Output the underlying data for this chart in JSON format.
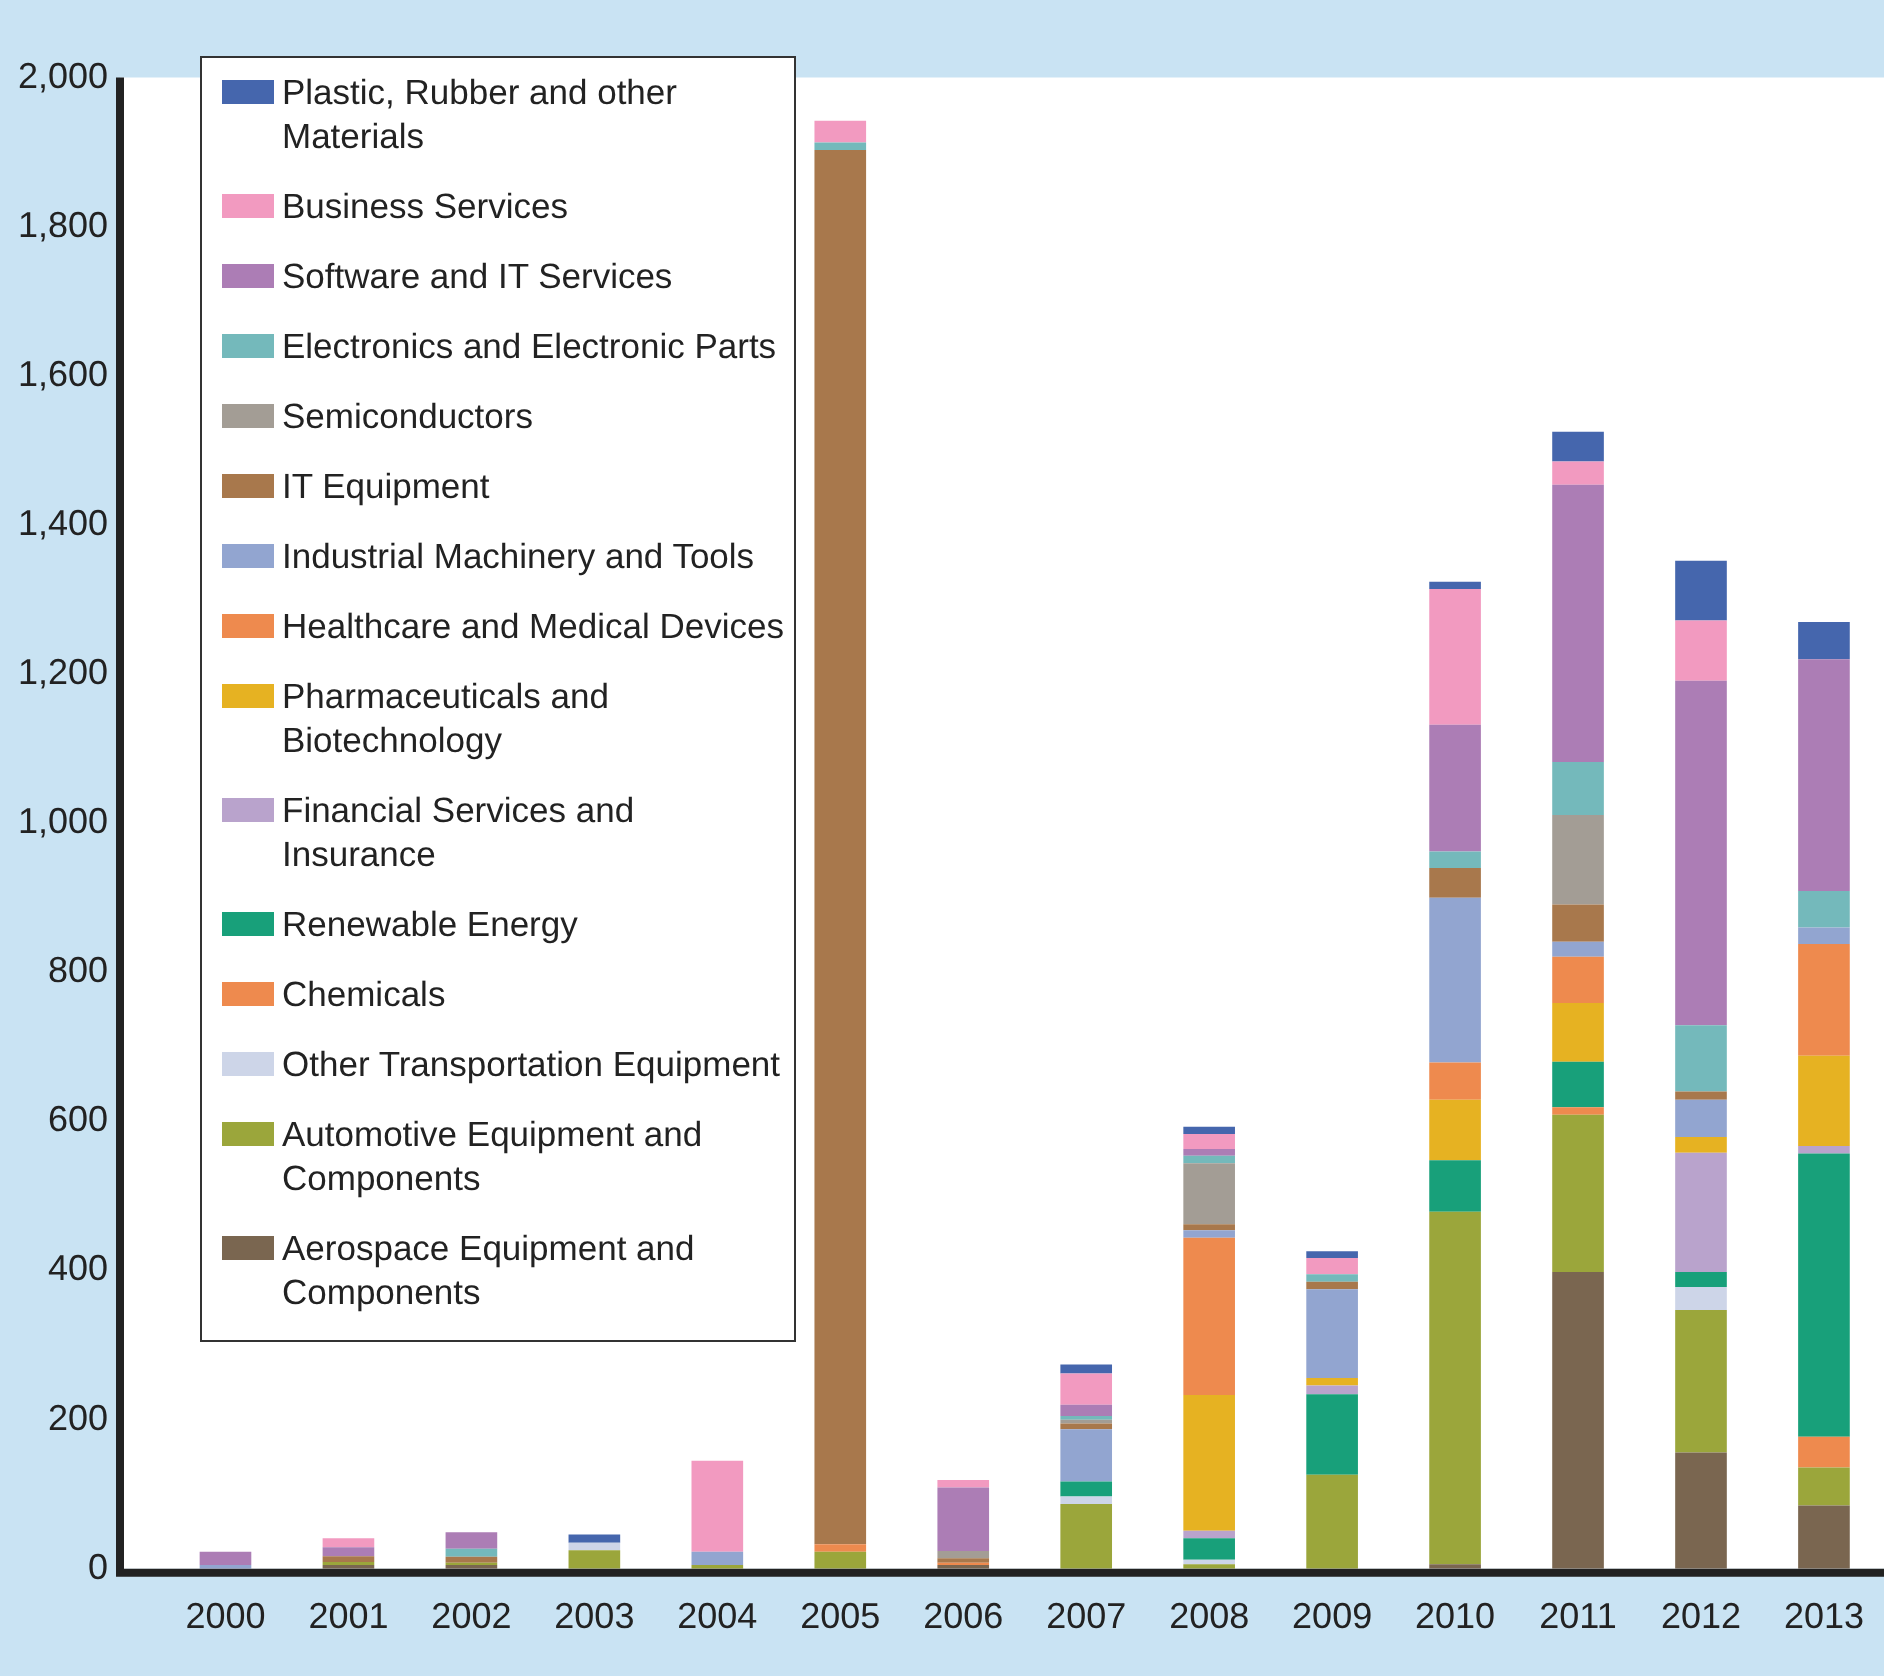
{
  "chart_data": {
    "type": "bar",
    "stacked": true,
    "legend": "top left",
    "grid": false,
    "categories": [
      "2000",
      "2001",
      "2002",
      "2003",
      "2004",
      "2005",
      "2006",
      "2007",
      "2008",
      "2009",
      "2010",
      "2011",
      "2012",
      "2013"
    ],
    "ylim": [
      0,
      2000
    ],
    "yticks": [
      {
        "value": 0,
        "label": "0"
      },
      {
        "value": 200,
        "label": "200"
      },
      {
        "value": 400,
        "label": "400"
      },
      {
        "value": 600,
        "label": "600"
      },
      {
        "value": 800,
        "label": "800"
      },
      {
        "value": 1000,
        "label": "1,000"
      },
      {
        "value": 1200,
        "label": "1,200"
      },
      {
        "value": 1400,
        "label": "1,400"
      },
      {
        "value": 1600,
        "label": "1,600"
      },
      {
        "value": 1800,
        "label": "1,800"
      },
      {
        "value": 2000,
        "label": "2,000"
      }
    ],
    "series": [
      {
        "name": "Aerospace Equipment and Components",
        "color": "#7a6650",
        "values": [
          0,
          5,
          5,
          0,
          0,
          0,
          5,
          0,
          0,
          0,
          6,
          398,
          156,
          85
        ]
      },
      {
        "name": "Automotive Equipment and Components",
        "color": "#9ba63b",
        "values": [
          0,
          4,
          3,
          25,
          5,
          23,
          0,
          87,
          6,
          126,
          473,
          211,
          191,
          51
        ]
      },
      {
        "name": "Other Transportation Equipment",
        "color": "#cdd5e8",
        "values": [
          0,
          0,
          0,
          10,
          0,
          0,
          0,
          10,
          6,
          0,
          0,
          0,
          31,
          0
        ]
      },
      {
        "name": "Chemicals",
        "color": "#ee8a4e",
        "values": [
          0,
          0,
          0,
          0,
          0,
          10,
          3,
          0,
          0,
          0,
          0,
          10,
          0,
          41
        ]
      },
      {
        "name": "Renewable Energy",
        "color": "#18a07a",
        "values": [
          0,
          0,
          0,
          0,
          0,
          0,
          0,
          20,
          29,
          108,
          69,
          61,
          20,
          380
        ]
      },
      {
        "name": "Financial Services and Insurance",
        "color": "#b9a3cc",
        "values": [
          0,
          0,
          0,
          0,
          0,
          0,
          0,
          0,
          10,
          12,
          0,
          0,
          160,
          10
        ]
      },
      {
        "name": "Pharmaceuticals and Biotechnology",
        "color": "#e6b222",
        "values": [
          0,
          0,
          0,
          0,
          0,
          0,
          0,
          0,
          182,
          10,
          81,
          79,
          21,
          121
        ]
      },
      {
        "name": "Healthcare and Medical Devices",
        "color": "#ee8a4e",
        "values": [
          0,
          0,
          0,
          0,
          0,
          0,
          0,
          0,
          211,
          0,
          50,
          62,
          0,
          150
        ]
      },
      {
        "name": "Industrial Machinery and Tools",
        "color": "#92a5d0",
        "values": [
          5,
          0,
          0,
          0,
          18,
          0,
          0,
          70,
          10,
          119,
          221,
          20,
          50,
          22
        ]
      },
      {
        "name": "IT Equipment",
        "color": "#a8784c",
        "values": [
          0,
          8,
          8,
          0,
          0,
          1870,
          6,
          8,
          8,
          10,
          40,
          50,
          11,
          0
        ]
      },
      {
        "name": "Semiconductors",
        "color": "#a39d95",
        "values": [
          0,
          0,
          0,
          0,
          0,
          0,
          10,
          5,
          82,
          0,
          0,
          120,
          0,
          0
        ]
      },
      {
        "name": "Electronics and Electronic Parts",
        "color": "#74b9bb",
        "values": [
          0,
          0,
          11,
          0,
          0,
          10,
          0,
          5,
          10,
          10,
          22,
          71,
          89,
          49
        ]
      },
      {
        "name": "Software and IT Services",
        "color": "#ac7db5",
        "values": [
          18,
          12,
          22,
          0,
          0,
          0,
          85,
          15,
          9,
          0,
          170,
          372,
          462,
          311
        ]
      },
      {
        "name": "Business Services",
        "color": "#f29ac0",
        "values": [
          0,
          12,
          0,
          0,
          122,
          29,
          10,
          42,
          20,
          22,
          182,
          31,
          81,
          0
        ]
      },
      {
        "name": "Plastic, Rubber and other Materials",
        "color": "#4566ad",
        "values": [
          0,
          0,
          0,
          11,
          0,
          0,
          0,
          12,
          10,
          9,
          10,
          40,
          80,
          50
        ]
      }
    ]
  }
}
